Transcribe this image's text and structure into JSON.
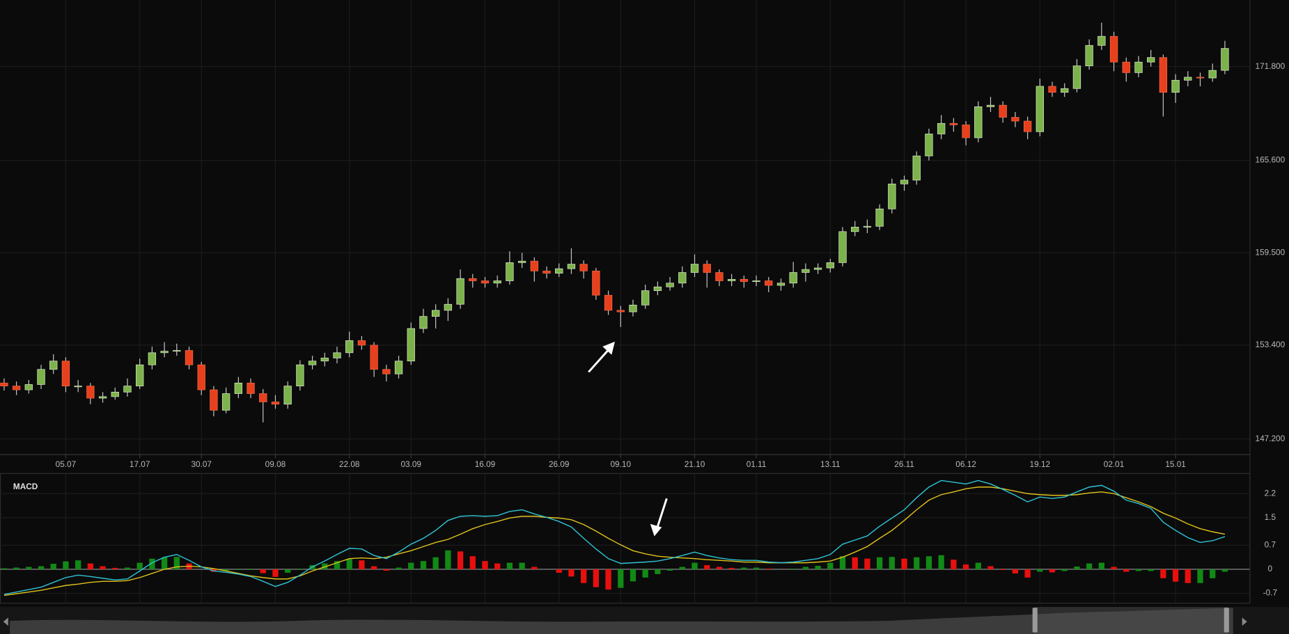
{
  "chart_data": [
    {
      "type": "candlestick",
      "categories": [
        null,
        null,
        null,
        null,
        null,
        "05.07",
        null,
        null,
        null,
        null,
        null,
        "17.07",
        null,
        null,
        null,
        null,
        "30.07",
        null,
        null,
        null,
        null,
        null,
        "09.08",
        null,
        null,
        null,
        null,
        null,
        "22.08",
        null,
        null,
        null,
        null,
        "03.09",
        null,
        null,
        null,
        null,
        null,
        "16.09",
        null,
        null,
        null,
        null,
        null,
        "26.09",
        null,
        null,
        null,
        null,
        "09.10",
        null,
        null,
        null,
        null,
        null,
        "21.10",
        null,
        null,
        null,
        null,
        "01.11",
        null,
        null,
        null,
        null,
        null,
        "13.11",
        null,
        null,
        null,
        null,
        null,
        "26.11",
        null,
        null,
        null,
        null,
        "06.12",
        null,
        null,
        null,
        null,
        null,
        "19.12",
        null,
        null,
        null,
        null,
        null,
        "02.01",
        null,
        null,
        null,
        null,
        "15.01",
        null,
        null,
        null,
        null
      ],
      "ohlc": [
        [
          150.9,
          151.2,
          150.4,
          150.7
        ],
        [
          150.7,
          151.0,
          150.1,
          150.45
        ],
        [
          150.45,
          151.1,
          150.2,
          150.8
        ],
        [
          150.8,
          152.1,
          150.5,
          151.8
        ],
        [
          151.8,
          152.8,
          151.5,
          152.35
        ],
        [
          152.35,
          152.6,
          150.3,
          150.7
        ],
        [
          150.65,
          151.1,
          150.3,
          150.7
        ],
        [
          150.7,
          150.9,
          149.5,
          149.9
        ],
        [
          149.9,
          150.3,
          149.6,
          150.0
        ],
        [
          150.0,
          150.6,
          149.8,
          150.3
        ],
        [
          150.3,
          151.2,
          150.0,
          150.7
        ],
        [
          150.7,
          152.5,
          150.5,
          152.1
        ],
        [
          152.1,
          153.3,
          151.8,
          152.9
        ],
        [
          152.9,
          153.6,
          152.6,
          153.0
        ],
        [
          153.0,
          153.5,
          152.7,
          153.05
        ],
        [
          153.05,
          153.3,
          151.8,
          152.1
        ],
        [
          152.1,
          152.3,
          150.1,
          150.45
        ],
        [
          150.45,
          150.7,
          148.7,
          149.1
        ],
        [
          149.1,
          150.6,
          148.9,
          150.2
        ],
        [
          150.2,
          151.3,
          149.9,
          150.9
        ],
        [
          150.9,
          151.2,
          149.9,
          150.2
        ],
        [
          150.2,
          150.5,
          148.3,
          149.65
        ],
        [
          149.65,
          150.1,
          149.2,
          149.5
        ],
        [
          149.5,
          151.0,
          149.2,
          150.7
        ],
        [
          150.7,
          152.4,
          150.4,
          152.1
        ],
        [
          152.1,
          152.7,
          151.8,
          152.35
        ],
        [
          152.35,
          152.9,
          152.0,
          152.55
        ],
        [
          152.55,
          153.3,
          152.2,
          152.9
        ],
        [
          152.9,
          154.3,
          152.6,
          153.7
        ],
        [
          153.7,
          154.0,
          153.1,
          153.4
        ],
        [
          153.4,
          153.6,
          151.3,
          151.8
        ],
        [
          151.8,
          152.1,
          151.0,
          151.5
        ],
        [
          151.5,
          152.7,
          151.2,
          152.35
        ],
        [
          152.35,
          154.9,
          152.1,
          154.5
        ],
        [
          154.5,
          155.8,
          154.2,
          155.3
        ],
        [
          155.3,
          156.1,
          154.5,
          155.7
        ],
        [
          155.7,
          156.5,
          155.0,
          156.1
        ],
        [
          156.1,
          158.4,
          155.8,
          157.8
        ],
        [
          157.8,
          158.1,
          157.2,
          157.65
        ],
        [
          157.65,
          157.9,
          157.2,
          157.5
        ],
        [
          157.5,
          158.0,
          157.2,
          157.65
        ],
        [
          157.65,
          159.6,
          157.4,
          158.85
        ],
        [
          158.85,
          159.5,
          158.5,
          158.95
        ],
        [
          158.95,
          159.2,
          157.6,
          158.3
        ],
        [
          158.3,
          158.6,
          157.8,
          158.15
        ],
        [
          158.15,
          158.8,
          157.9,
          158.45
        ],
        [
          158.45,
          159.8,
          158.1,
          158.75
        ],
        [
          158.75,
          159.0,
          157.8,
          158.3
        ],
        [
          158.3,
          158.5,
          156.4,
          156.7
        ],
        [
          156.7,
          157.0,
          155.4,
          155.7
        ],
        [
          155.7,
          156.0,
          154.6,
          155.6
        ],
        [
          155.6,
          156.4,
          155.3,
          156.05
        ],
        [
          156.05,
          157.4,
          155.8,
          157.0
        ],
        [
          157.0,
          157.6,
          156.7,
          157.25
        ],
        [
          157.25,
          157.9,
          157.0,
          157.5
        ],
        [
          157.5,
          158.6,
          157.2,
          158.2
        ],
        [
          158.2,
          159.4,
          157.9,
          158.75
        ],
        [
          158.75,
          159.0,
          157.2,
          158.2
        ],
        [
          158.2,
          158.4,
          157.3,
          157.65
        ],
        [
          157.65,
          158.1,
          157.3,
          157.75
        ],
        [
          157.75,
          158.0,
          157.2,
          157.6
        ],
        [
          157.6,
          158.0,
          157.3,
          157.65
        ],
        [
          157.65,
          157.9,
          156.9,
          157.35
        ],
        [
          157.35,
          157.8,
          157.0,
          157.5
        ],
        [
          157.5,
          158.9,
          157.2,
          158.2
        ],
        [
          158.2,
          158.8,
          157.6,
          158.4
        ],
        [
          158.4,
          158.8,
          158.1,
          158.5
        ],
        [
          158.5,
          159.1,
          158.2,
          158.85
        ],
        [
          158.85,
          161.2,
          158.6,
          160.9
        ],
        [
          160.9,
          161.6,
          160.6,
          161.2
        ],
        [
          161.2,
          161.7,
          160.8,
          161.25
        ],
        [
          161.25,
          162.7,
          161.0,
          162.4
        ],
        [
          162.4,
          164.4,
          162.1,
          164.05
        ],
        [
          164.05,
          164.6,
          163.6,
          164.3
        ],
        [
          164.3,
          166.2,
          164.0,
          165.9
        ],
        [
          165.9,
          167.7,
          165.6,
          167.35
        ],
        [
          167.35,
          168.6,
          167.0,
          168.05
        ],
        [
          168.05,
          168.4,
          167.5,
          167.95
        ],
        [
          167.95,
          168.2,
          166.6,
          167.1
        ],
        [
          167.1,
          169.5,
          166.8,
          169.15
        ],
        [
          169.15,
          169.8,
          168.8,
          169.25
        ],
        [
          169.25,
          169.5,
          168.1,
          168.45
        ],
        [
          168.45,
          168.8,
          167.8,
          168.2
        ],
        [
          168.2,
          168.5,
          167.0,
          167.5
        ],
        [
          167.5,
          171.0,
          167.2,
          170.5
        ],
        [
          170.5,
          170.8,
          169.8,
          170.1
        ],
        [
          170.1,
          170.7,
          169.8,
          170.35
        ],
        [
          170.35,
          172.3,
          170.1,
          171.85
        ],
        [
          171.85,
          173.6,
          171.6,
          173.2
        ],
        [
          173.2,
          174.7,
          172.9,
          173.8
        ],
        [
          173.8,
          174.1,
          171.5,
          172.1
        ],
        [
          172.1,
          172.4,
          170.8,
          171.4
        ],
        [
          171.4,
          172.5,
          171.1,
          172.1
        ],
        [
          172.1,
          172.9,
          171.8,
          172.4
        ],
        [
          172.4,
          172.6,
          168.5,
          170.1
        ],
        [
          170.1,
          171.3,
          169.4,
          170.9
        ],
        [
          170.9,
          171.5,
          170.5,
          171.1
        ],
        [
          171.1,
          171.4,
          170.5,
          171.05
        ],
        [
          171.05,
          172.0,
          170.8,
          171.55
        ],
        [
          171.55,
          173.5,
          171.3,
          173.0
        ]
      ],
      "up_color": "#7cb24a",
      "down_color": "#e8401c",
      "ylim": [
        146.2,
        176.2
      ],
      "yticks": [
        {
          "value": 147.2,
          "label": "147.200"
        },
        {
          "value": 153.4,
          "label": "153.400"
        },
        {
          "value": 159.5,
          "label": "159.500"
        },
        {
          "value": 165.6,
          "label": "165.600"
        },
        {
          "value": 171.8,
          "label": "171.800"
        }
      ],
      "grid": true
    },
    {
      "type": "macd",
      "title": "MACD",
      "macd": {
        "color": "#2ec4d6",
        "values": [
          -0.73,
          -0.66,
          -0.59,
          -0.52,
          -0.38,
          -0.24,
          -0.17,
          -0.21,
          -0.26,
          -0.31,
          -0.28,
          -0.05,
          0.19,
          0.35,
          0.43,
          0.26,
          0.07,
          -0.05,
          -0.09,
          -0.14,
          -0.21,
          -0.35,
          -0.5,
          -0.38,
          -0.17,
          0.07,
          0.24,
          0.43,
          0.61,
          0.59,
          0.4,
          0.31,
          0.5,
          0.73,
          0.9,
          1.13,
          1.42,
          1.54,
          1.56,
          1.54,
          1.56,
          1.68,
          1.73,
          1.61,
          1.51,
          1.39,
          1.23,
          0.9,
          0.59,
          0.31,
          0.17,
          0.19,
          0.21,
          0.24,
          0.31,
          0.4,
          0.5,
          0.4,
          0.33,
          0.28,
          0.26,
          0.26,
          0.21,
          0.19,
          0.21,
          0.26,
          0.31,
          0.43,
          0.73,
          0.85,
          0.97,
          1.25,
          1.49,
          1.73,
          2.08,
          2.39,
          2.58,
          2.53,
          2.48,
          2.58,
          2.48,
          2.32,
          2.15,
          1.96,
          2.1,
          2.06,
          2.1,
          2.25,
          2.39,
          2.44,
          2.27,
          2.01,
          1.91,
          1.77,
          1.37,
          1.13,
          0.92,
          0.78,
          0.83,
          0.95
        ]
      },
      "signal": {
        "color": "#e0c21c",
        "values": [
          -0.76,
          -0.71,
          -0.66,
          -0.61,
          -0.54,
          -0.47,
          -0.43,
          -0.38,
          -0.35,
          -0.35,
          -0.33,
          -0.24,
          -0.12,
          0,
          0.07,
          0.09,
          0.07,
          0.02,
          -0.05,
          -0.12,
          -0.19,
          -0.24,
          -0.28,
          -0.28,
          -0.19,
          -0.05,
          0.07,
          0.19,
          0.31,
          0.33,
          0.31,
          0.35,
          0.45,
          0.54,
          0.66,
          0.78,
          0.87,
          1.02,
          1.18,
          1.3,
          1.39,
          1.49,
          1.54,
          1.54,
          1.51,
          1.49,
          1.44,
          1.3,
          1.11,
          0.9,
          0.71,
          0.54,
          0.45,
          0.38,
          0.35,
          0.33,
          0.31,
          0.28,
          0.26,
          0.24,
          0.21,
          0.21,
          0.19,
          0.19,
          0.19,
          0.19,
          0.21,
          0.24,
          0.35,
          0.5,
          0.66,
          0.9,
          1.13,
          1.42,
          1.73,
          2.01,
          2.17,
          2.25,
          2.34,
          2.39,
          2.39,
          2.34,
          2.27,
          2.2,
          2.17,
          2.15,
          2.15,
          2.17,
          2.22,
          2.25,
          2.2,
          2.08,
          1.96,
          1.82,
          1.63,
          1.49,
          1.32,
          1.18,
          1.09,
          1.02
        ]
      },
      "histogram": {
        "up_color": "#118a16",
        "down_color": "#e8100e",
        "values": [
          0.03,
          0.05,
          0.07,
          0.09,
          0.16,
          0.23,
          0.26,
          0.17,
          0.09,
          0.04,
          0.05,
          0.19,
          0.31,
          0.35,
          0.36,
          0.17,
          0,
          -0.07,
          -0.04,
          -0.02,
          -0.02,
          -0.11,
          -0.22,
          -0.1,
          0.02,
          0.12,
          0.17,
          0.24,
          0.3,
          0.26,
          0.09,
          -0.04,
          0.05,
          0.19,
          0.24,
          0.35,
          0.55,
          0.52,
          0.38,
          0.24,
          0.17,
          0.19,
          0.19,
          0.07,
          0,
          -0.1,
          -0.21,
          -0.4,
          -0.52,
          -0.59,
          -0.54,
          -0.35,
          -0.24,
          -0.14,
          -0.04,
          0.07,
          0.19,
          0.12,
          0.07,
          0.04,
          0.05,
          0.05,
          0.02,
          0,
          0.02,
          0.07,
          0.1,
          0.19,
          0.38,
          0.35,
          0.31,
          0.35,
          0.36,
          0.31,
          0.35,
          0.38,
          0.41,
          0.28,
          0.14,
          0.19,
          0.09,
          -0.02,
          -0.12,
          -0.24,
          -0.07,
          -0.09,
          -0.05,
          0.08,
          0.17,
          0.19,
          0.07,
          -0.07,
          -0.05,
          -0.05,
          -0.26,
          -0.36,
          -0.4,
          -0.4,
          -0.26,
          -0.07
        ]
      },
      "ylim": [
        -0.95,
        2.75
      ],
      "yticks": [
        2.2,
        1.5,
        0.7,
        0,
        -0.7
      ],
      "grid": true
    }
  ]
}
